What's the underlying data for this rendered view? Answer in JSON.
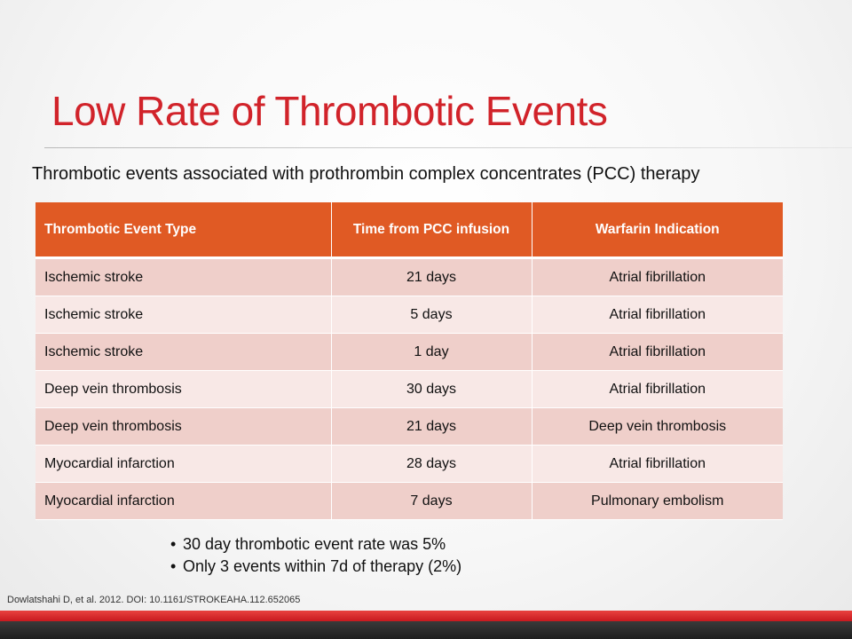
{
  "slide": {
    "title": "Low Rate of Thrombotic Events",
    "subtitle": "Thrombotic events associated with prothrombin complex concentrates (PCC) therapy",
    "table": {
      "headers": [
        "Thrombotic Event Type",
        "Time from PCC infusion",
        "Warfarin Indication"
      ],
      "rows": [
        [
          "Ischemic stroke",
          "21 days",
          "Atrial fibrillation"
        ],
        [
          "Ischemic stroke",
          "5 days",
          "Atrial fibrillation"
        ],
        [
          "Ischemic stroke",
          "1 day",
          "Atrial fibrillation"
        ],
        [
          "Deep vein thrombosis",
          "30 days",
          "Atrial fibrillation"
        ],
        [
          "Deep vein thrombosis",
          "21 days",
          "Deep vein thrombosis"
        ],
        [
          "Myocardial infarction",
          "28 days",
          "Atrial fibrillation"
        ],
        [
          "Myocardial infarction",
          "7 days",
          "Pulmonary embolism"
        ]
      ]
    },
    "bullets": [
      "30 day thrombotic event rate was 5%",
      "Only 3 events within 7d of therapy (2%)"
    ],
    "citation": "Dowlatshahi D, et al. 2012. DOI: 10.1161/STROKEAHA.112.652065",
    "colors": {
      "title": "#d1232a",
      "header_bg": "#e05a24",
      "row_odd": "#efcfca",
      "row_even": "#f8e8e6",
      "footer_red": "#d1232a",
      "footer_dark": "#2b2b2b"
    }
  }
}
